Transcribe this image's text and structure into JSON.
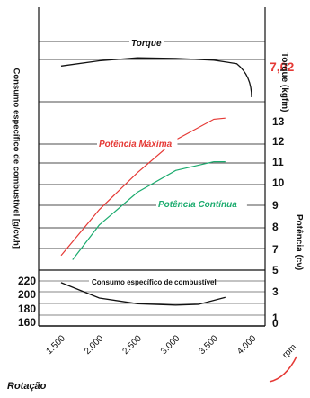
{
  "chart_data": {
    "type": "line",
    "xlabel": "Rotação",
    "xunit": "rpm",
    "x_ticks": [
      "1.500",
      "2.000",
      "2.500",
      "3.000",
      "3.500",
      "4.000"
    ],
    "xlim": [
      1500,
      4000
    ],
    "left_ylabel": "Consumo específico de combustível [g/cv.h]",
    "left_yticks": [
      220,
      200,
      180,
      160
    ],
    "right_torque_label": "Torque (kgfm)",
    "right_torque_value": "7,02",
    "right_power_label": "Potência (cv)",
    "right_yticks": [
      13,
      12,
      11,
      10,
      9,
      8,
      7,
      6,
      5,
      3,
      1,
      0
    ],
    "panels": {
      "torque": {
        "name": "Torque",
        "x": [
          1500,
          2000,
          2500,
          3000,
          3500,
          3800
        ],
        "y": [
          6.88,
          6.97,
          7.02,
          7.01,
          6.98,
          6.92
        ]
      },
      "potencia_maxima": {
        "name": "Potência Máxima",
        "color": "#e53935",
        "x": [
          1500,
          2000,
          2500,
          3000,
          3500,
          3650
        ],
        "y": [
          6.7,
          8.8,
          10.5,
          12.0,
          12.95,
          13.0
        ]
      },
      "potencia_continua": {
        "name": "Potência Contínua",
        "color": "#1bab6e",
        "x": [
          1650,
          2000,
          2500,
          3000,
          3500,
          3650
        ],
        "y": [
          6.5,
          8.1,
          9.6,
          10.6,
          11.0,
          11.0
        ]
      },
      "consumo": {
        "name": "Consumo específico de combustível",
        "x": [
          1500,
          2000,
          2500,
          3000,
          3300,
          3650
        ],
        "y": [
          213,
          191,
          183,
          181,
          182,
          192
        ]
      }
    }
  }
}
